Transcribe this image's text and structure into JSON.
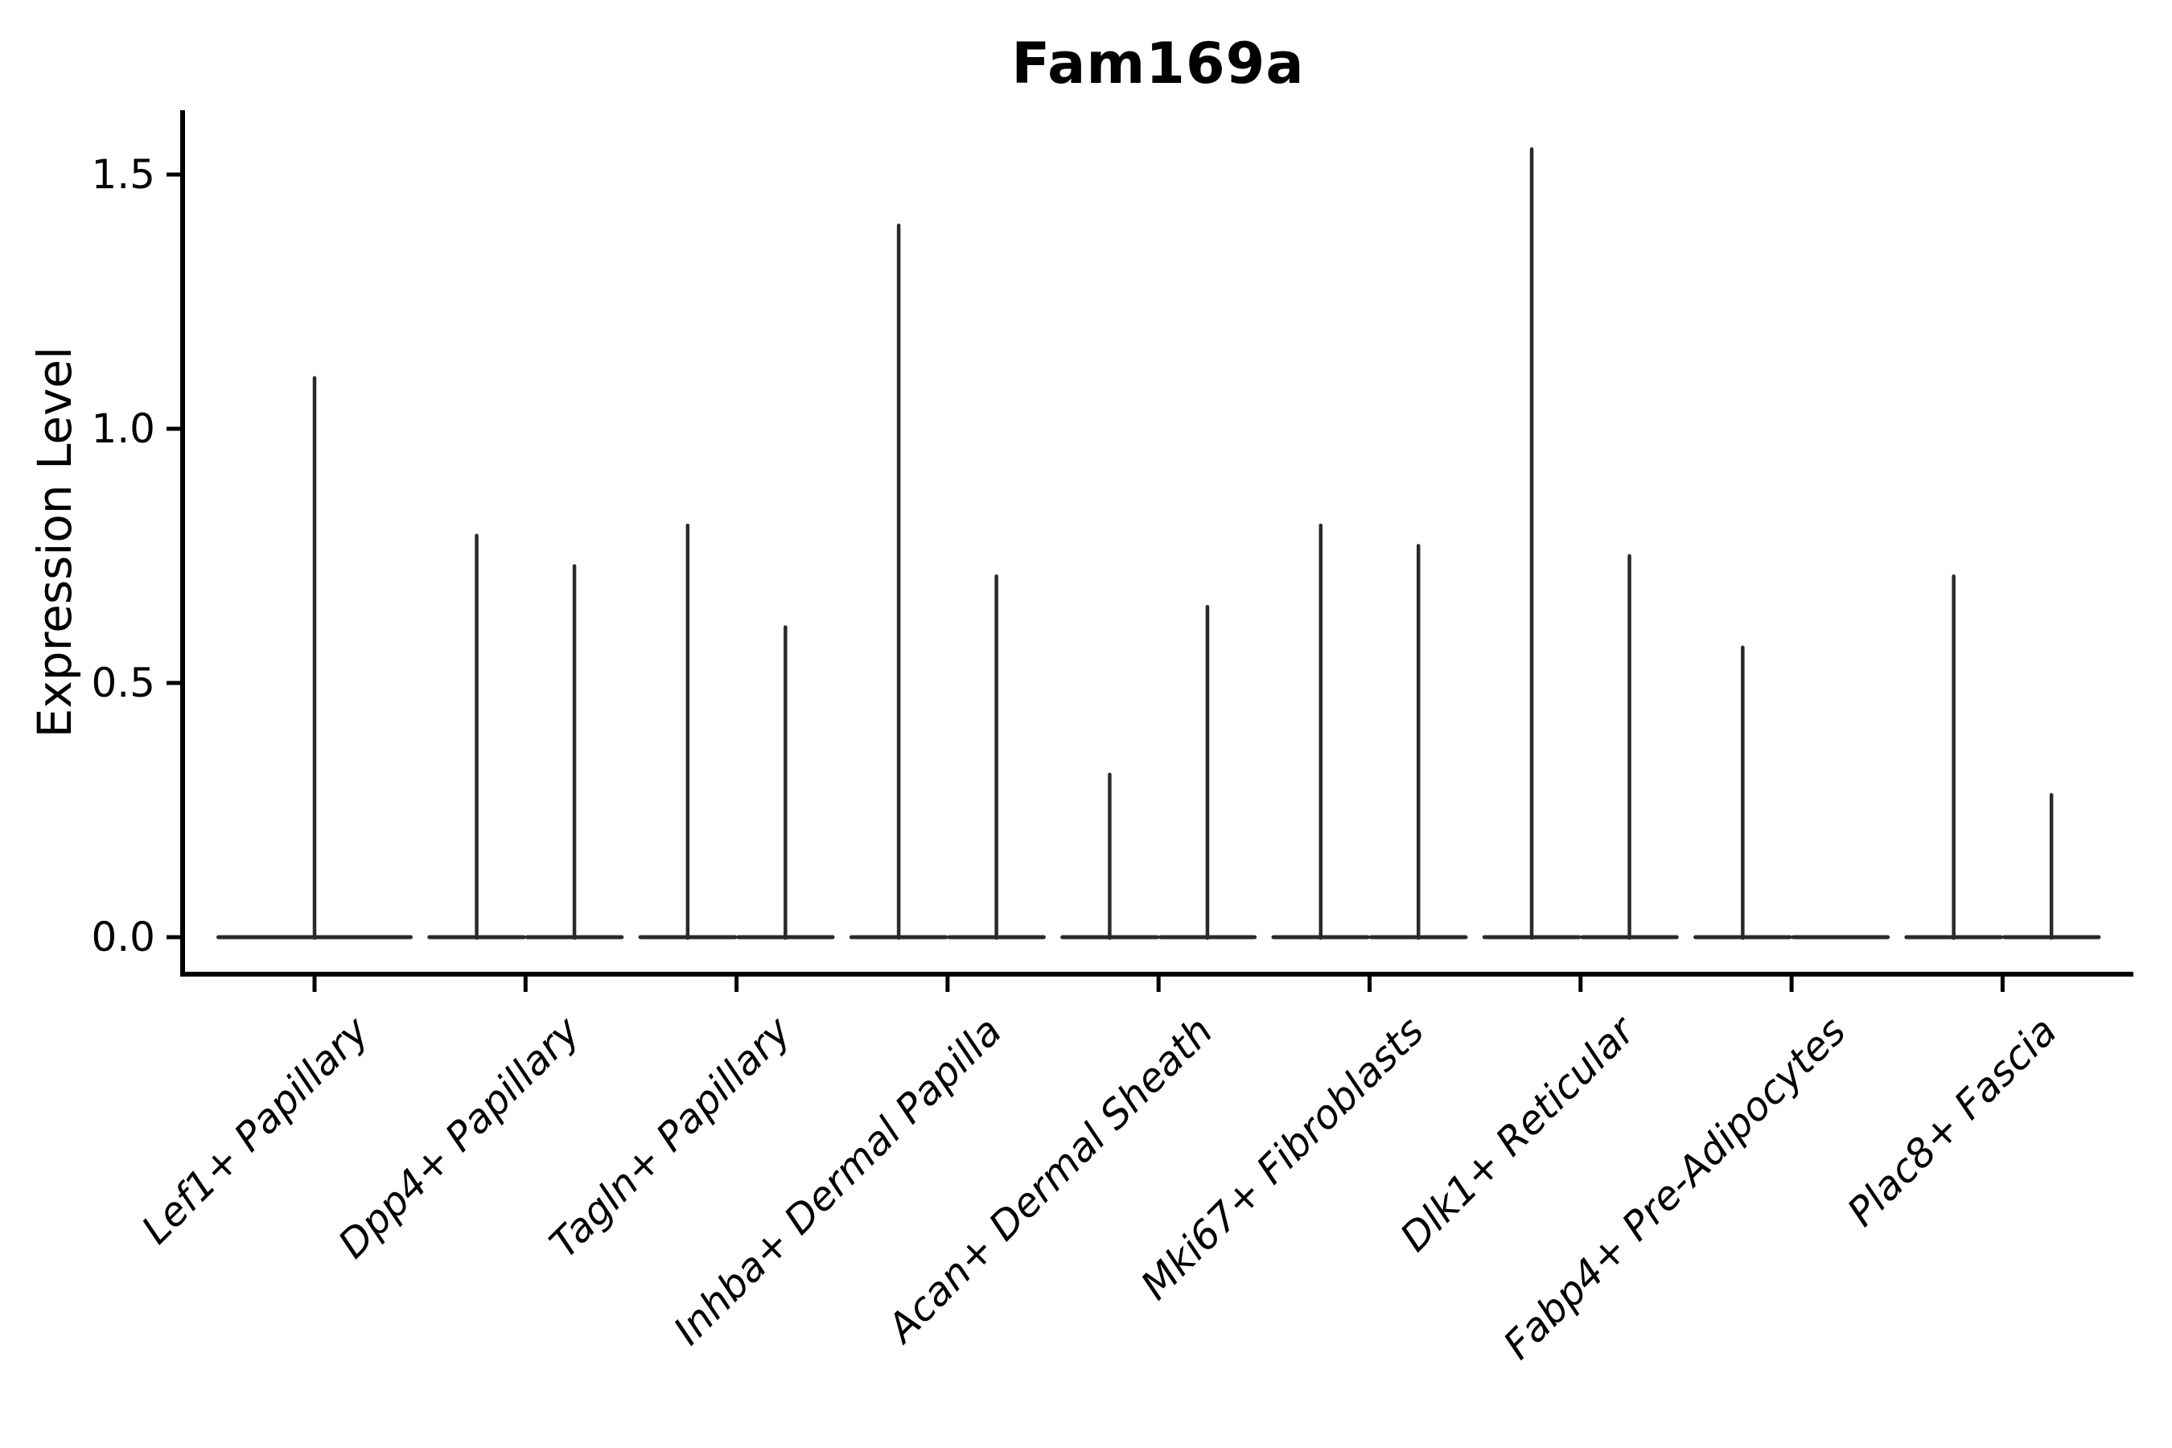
{
  "chart_data": {
    "type": "violin",
    "title": "Fam169a",
    "ylabel": "Expression Level",
    "xlabel": "",
    "ylim": [
      0,
      1.63
    ],
    "yticks": [
      0.0,
      0.5,
      1.0,
      1.5
    ],
    "ytick_labels": [
      "0.0",
      "0.5",
      "1.0",
      "1.5"
    ],
    "grid": false,
    "legend": false,
    "x_label_rotation_deg": 45,
    "x_label_style": "italic",
    "violin_shape": "collapsed-at-zero baseline with thin center spike up to max value",
    "colors": {
      "violin_line": "#2a2a2a",
      "axis": "#000000",
      "text": "#000000",
      "background": "#ffffff"
    },
    "categories": [
      "Lef1+ Papillary",
      "Dpp4+ Papillary",
      "Tagln+ Papillary",
      "Inhba+ Dermal Papilla",
      "Acan+ Dermal Sheath",
      "Mki67+ Fibroblasts",
      "Dlk1+ Reticular",
      "Fabp4+ Pre-Adipocytes",
      "Plac8+ Fascia"
    ],
    "violins": [
      {
        "category": "Lef1+ Papillary",
        "spike_max_values": [
          1.1
        ]
      },
      {
        "category": "Dpp4+ Papillary",
        "spike_max_values": [
          0.79,
          0.73
        ]
      },
      {
        "category": "Tagln+ Papillary",
        "spike_max_values": [
          0.81,
          0.61
        ]
      },
      {
        "category": "Inhba+ Dermal Papilla",
        "spike_max_values": [
          1.4,
          0.71
        ]
      },
      {
        "category": "Acan+ Dermal Sheath",
        "spike_max_values": [
          0.32,
          0.65
        ]
      },
      {
        "category": "Mki67+ Fibroblasts",
        "spike_max_values": [
          0.81,
          0.77
        ]
      },
      {
        "category": "Dlk1+ Reticular",
        "spike_max_values": [
          1.55,
          0.75
        ]
      },
      {
        "category": "Fabp4+ Pre-Adipocytes",
        "spike_max_values": [
          0.57,
          0.0
        ]
      },
      {
        "category": "Plac8+ Fascia",
        "spike_max_values": [
          0.71,
          0.28
        ]
      }
    ]
  }
}
